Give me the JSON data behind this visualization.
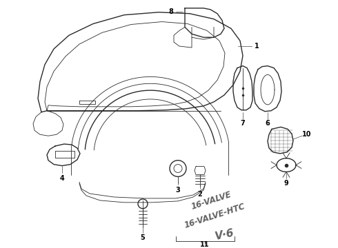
{
  "background_color": "#ffffff",
  "line_color": "#2a2a2a",
  "label_color": "#000000",
  "figsize": [
    4.9,
    3.6
  ],
  "dpi": 100,
  "lw_main": 1.0,
  "lw_thin": 0.6,
  "lw_label": 0.5
}
